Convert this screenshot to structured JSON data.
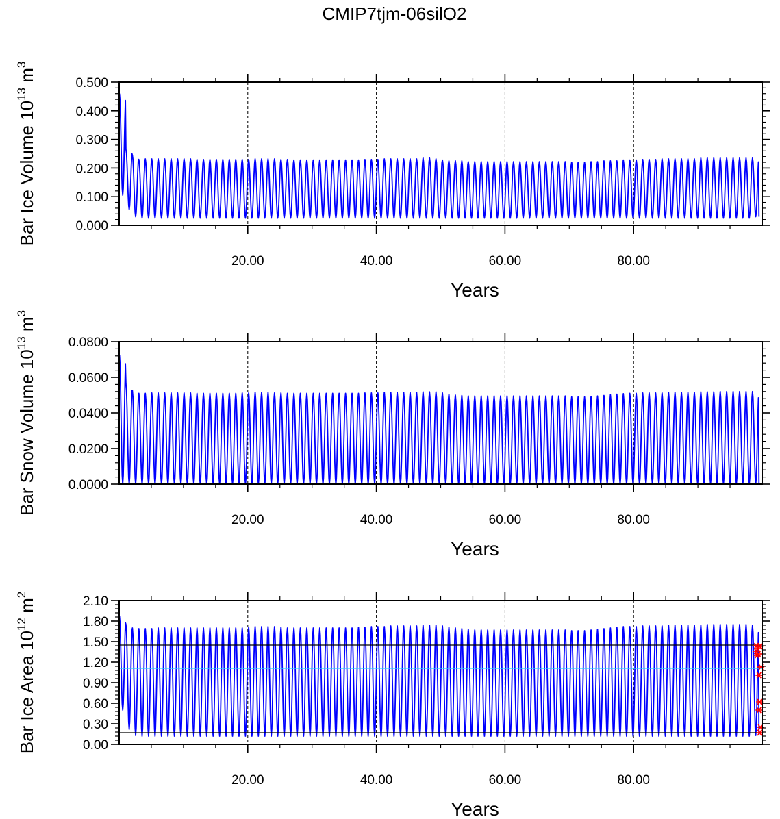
{
  "figure_title": "CMIP7tjm-06silO2",
  "colors": {
    "series": "#0000ff",
    "cyan_line": "#33ccff",
    "ref_line": "#000000",
    "markers": "#ff0000",
    "grid": "#000000"
  },
  "chart_data": [
    {
      "type": "line",
      "title": "",
      "xlabel": "Years",
      "ylabel": {
        "main": "Bar Ice Volume 10",
        "exp": "13",
        "unit": " m",
        "unit_exp": "3"
      },
      "xlim": [
        0,
        100
      ],
      "ylim": [
        0,
        0.5
      ],
      "x_ticks": [
        20,
        40,
        60,
        80
      ],
      "x_tick_labels": [
        "20.00",
        "40.00",
        "60.00",
        "80.00"
      ],
      "y_ticks": [
        0,
        0.1,
        0.2,
        0.3,
        0.4,
        0.5
      ],
      "y_tick_labels": [
        "0.000",
        "0.100",
        "0.200",
        "0.300",
        "0.400",
        "0.500"
      ],
      "grid": "vertical dashed at x ticks",
      "series": [
        {
          "cycles": 99,
          "peaks": [
            0.46,
            0.265,
            0.245,
            0.23,
            0.232,
            0.232,
            0.232,
            0.232,
            0.232,
            0.232,
            0.232,
            0.232,
            0.23,
            0.23,
            0.23,
            0.23,
            0.23,
            0.23,
            0.23,
            0.23,
            0.23,
            0.232,
            0.232,
            0.232,
            0.232,
            0.23,
            0.23,
            0.228,
            0.228,
            0.228,
            0.228,
            0.228,
            0.228,
            0.228,
            0.228,
            0.228,
            0.228,
            0.228,
            0.23,
            0.23,
            0.23,
            0.232,
            0.232,
            0.232,
            0.232,
            0.232,
            0.232,
            0.235,
            0.235,
            0.232,
            0.228,
            0.225,
            0.225,
            0.225,
            0.222,
            0.222,
            0.222,
            0.222,
            0.222,
            0.222,
            0.222,
            0.222,
            0.222,
            0.222,
            0.222,
            0.222,
            0.222,
            0.222,
            0.222,
            0.222,
            0.22,
            0.22,
            0.22,
            0.222,
            0.222,
            0.225,
            0.225,
            0.225,
            0.228,
            0.228,
            0.228,
            0.23,
            0.23,
            0.23,
            0.232,
            0.232,
            0.232,
            0.232,
            0.232,
            0.232,
            0.235,
            0.235,
            0.235,
            0.235,
            0.235,
            0.235,
            0.235,
            0.235,
            0.235
          ],
          "troughs": [
            0.105,
            0.055,
            0.03,
            0.025,
            0.025,
            0.025,
            0.025,
            0.025,
            0.025,
            0.025,
            0.025,
            0.025,
            0.025,
            0.025,
            0.025,
            0.025,
            0.025,
            0.025,
            0.025,
            0.025,
            0.025,
            0.025,
            0.025,
            0.025,
            0.025,
            0.025,
            0.025,
            0.025,
            0.025,
            0.025,
            0.025,
            0.025,
            0.025,
            0.025,
            0.025,
            0.025,
            0.025,
            0.025,
            0.025,
            0.025,
            0.025,
            0.025,
            0.025,
            0.025,
            0.025,
            0.025,
            0.025,
            0.025,
            0.025,
            0.025,
            0.025,
            0.025,
            0.025,
            0.025,
            0.025,
            0.025,
            0.025,
            0.025,
            0.025,
            0.025,
            0.025,
            0.025,
            0.025,
            0.025,
            0.025,
            0.025,
            0.025,
            0.025,
            0.025,
            0.025,
            0.025,
            0.025,
            0.025,
            0.025,
            0.025,
            0.025,
            0.025,
            0.025,
            0.025,
            0.025,
            0.025,
            0.025,
            0.025,
            0.025,
            0.025,
            0.025,
            0.025,
            0.025,
            0.025,
            0.025,
            0.025,
            0.025,
            0.025,
            0.025,
            0.025,
            0.025,
            0.025,
            0.025,
            0.03
          ]
        }
      ],
      "hlines": []
    },
    {
      "type": "line",
      "title": "",
      "xlabel": "Years",
      "ylabel": {
        "main": "Bar Snow Volume 10",
        "exp": "13",
        "unit": " m",
        "unit_exp": "3"
      },
      "xlim": [
        0,
        100
      ],
      "ylim": [
        0,
        0.08
      ],
      "x_ticks": [
        20,
        40,
        60,
        80
      ],
      "x_tick_labels": [
        "20.00",
        "40.00",
        "60.00",
        "80.00"
      ],
      "y_ticks": [
        0,
        0.02,
        0.04,
        0.06,
        0.08
      ],
      "y_tick_labels": [
        "0.0000",
        "0.0200",
        "0.0400",
        "0.0600",
        "0.0800"
      ],
      "grid": "vertical dashed at x ticks",
      "series": [
        {
          "cycles": 99,
          "peaks": [
            0.0725,
            0.0565,
            0.0525,
            0.051,
            0.051,
            0.0512,
            0.0512,
            0.0512,
            0.0512,
            0.0512,
            0.0512,
            0.0512,
            0.051,
            0.051,
            0.051,
            0.051,
            0.051,
            0.051,
            0.051,
            0.0512,
            0.0512,
            0.0515,
            0.0515,
            0.0515,
            0.0512,
            0.0512,
            0.051,
            0.051,
            0.051,
            0.051,
            0.051,
            0.051,
            0.051,
            0.051,
            0.051,
            0.051,
            0.051,
            0.051,
            0.0512,
            0.0512,
            0.0512,
            0.0515,
            0.0515,
            0.0515,
            0.0515,
            0.0515,
            0.0515,
            0.0518,
            0.0518,
            0.0518,
            0.0512,
            0.0505,
            0.05,
            0.0498,
            0.0495,
            0.0495,
            0.0495,
            0.0495,
            0.0495,
            0.0495,
            0.0495,
            0.0495,
            0.0495,
            0.0495,
            0.0495,
            0.0495,
            0.0495,
            0.0495,
            0.0495,
            0.0495,
            0.049,
            0.049,
            0.049,
            0.0492,
            0.0495,
            0.0498,
            0.0502,
            0.0505,
            0.0508,
            0.051,
            0.051,
            0.0512,
            0.0512,
            0.0512,
            0.0512,
            0.0515,
            0.0515,
            0.0515,
            0.0515,
            0.0515,
            0.0518,
            0.0518,
            0.0518,
            0.052,
            0.052,
            0.052,
            0.052,
            0.052,
            0.052
          ],
          "troughs": [
            0.0,
            0.0,
            0.0,
            0.0,
            0.0,
            0.0,
            0.0,
            0.0,
            0.0,
            0.0,
            0.0,
            0.0,
            0.0,
            0.0,
            0.0,
            0.0,
            0.0,
            0.0,
            0.0,
            0.0,
            0.0,
            0.0,
            0.0,
            0.0,
            0.0,
            0.0,
            0.0,
            0.0,
            0.0,
            0.0,
            0.0,
            0.0,
            0.0,
            0.0,
            0.0,
            0.0,
            0.0,
            0.0,
            0.0,
            0.0,
            0.0,
            0.0,
            0.0,
            0.0,
            0.0,
            0.0,
            0.0,
            0.0,
            0.0,
            0.0,
            0.0,
            0.0,
            0.0,
            0.0,
            0.0,
            0.0,
            0.0,
            0.0,
            0.0,
            0.0,
            0.0,
            0.0,
            0.0,
            0.0,
            0.0,
            0.0,
            0.0,
            0.0,
            0.0,
            0.0,
            0.0,
            0.0,
            0.0,
            0.0,
            0.0,
            0.0,
            0.0,
            0.0,
            0.0,
            0.0,
            0.0,
            0.0,
            0.0,
            0.0,
            0.0,
            0.0,
            0.0,
            0.0,
            0.0,
            0.0,
            0.0,
            0.0,
            0.0,
            0.0,
            0.0,
            0.0,
            0.0,
            0.0,
            0.0
          ]
        }
      ],
      "hlines": []
    },
    {
      "type": "line",
      "title": "",
      "xlabel": "Years",
      "ylabel": {
        "main": "Bar Ice Area 10",
        "exp": "12",
        "unit": " m",
        "unit_exp": "2"
      },
      "xlim": [
        0,
        100
      ],
      "ylim": [
        0,
        2.1
      ],
      "x_ticks": [
        20,
        40,
        60,
        80
      ],
      "x_tick_labels": [
        "20.00",
        "40.00",
        "60.00",
        "80.00"
      ],
      "y_ticks": [
        0,
        0.3,
        0.6,
        0.9,
        1.2,
        1.5,
        1.8,
        2.1
      ],
      "y_tick_labels": [
        "0.00",
        "0.30",
        "0.60",
        "0.90",
        "1.20",
        "1.50",
        "1.80",
        "2.10"
      ],
      "grid": "vertical dashed at x ticks",
      "series": [
        {
          "cycles": 99,
          "peaks": [
            1.87,
            1.75,
            1.7,
            1.69,
            1.69,
            1.69,
            1.7,
            1.7,
            1.7,
            1.7,
            1.7,
            1.7,
            1.7,
            1.7,
            1.7,
            1.7,
            1.7,
            1.7,
            1.7,
            1.7,
            1.71,
            1.72,
            1.72,
            1.72,
            1.72,
            1.71,
            1.7,
            1.7,
            1.7,
            1.7,
            1.7,
            1.7,
            1.7,
            1.7,
            1.7,
            1.7,
            1.7,
            1.71,
            1.71,
            1.72,
            1.72,
            1.72,
            1.73,
            1.73,
            1.73,
            1.73,
            1.73,
            1.74,
            1.74,
            1.74,
            1.73,
            1.71,
            1.7,
            1.69,
            1.68,
            1.67,
            1.67,
            1.67,
            1.67,
            1.67,
            1.67,
            1.67,
            1.67,
            1.67,
            1.67,
            1.67,
            1.67,
            1.67,
            1.67,
            1.67,
            1.66,
            1.66,
            1.66,
            1.67,
            1.68,
            1.69,
            1.7,
            1.71,
            1.72,
            1.72,
            1.72,
            1.73,
            1.73,
            1.73,
            1.73,
            1.74,
            1.74,
            1.74,
            1.74,
            1.74,
            1.74,
            1.75,
            1.75,
            1.75,
            1.75,
            1.75,
            1.75,
            1.75,
            1.74
          ],
          "troughs": [
            0.5,
            0.22,
            0.13,
            0.12,
            0.12,
            0.12,
            0.12,
            0.12,
            0.12,
            0.12,
            0.12,
            0.12,
            0.12,
            0.12,
            0.12,
            0.12,
            0.12,
            0.12,
            0.12,
            0.12,
            0.12,
            0.12,
            0.12,
            0.12,
            0.12,
            0.12,
            0.12,
            0.12,
            0.12,
            0.12,
            0.12,
            0.12,
            0.12,
            0.12,
            0.12,
            0.12,
            0.12,
            0.12,
            0.12,
            0.12,
            0.12,
            0.12,
            0.12,
            0.12,
            0.12,
            0.12,
            0.12,
            0.12,
            0.12,
            0.12,
            0.12,
            0.12,
            0.12,
            0.12,
            0.12,
            0.12,
            0.12,
            0.12,
            0.12,
            0.12,
            0.12,
            0.12,
            0.12,
            0.12,
            0.12,
            0.12,
            0.12,
            0.12,
            0.12,
            0.12,
            0.12,
            0.12,
            0.12,
            0.12,
            0.12,
            0.12,
            0.12,
            0.12,
            0.12,
            0.12,
            0.12,
            0.12,
            0.12,
            0.12,
            0.12,
            0.12,
            0.12,
            0.12,
            0.12,
            0.12,
            0.12,
            0.12,
            0.12,
            0.12,
            0.12,
            0.12,
            0.12,
            0.12,
            0.13
          ]
        }
      ],
      "hlines": [
        {
          "y": 1.45,
          "color": "#000000"
        },
        {
          "y": 1.11,
          "color": "#33ccff"
        },
        {
          "y": 0.17,
          "color": "#000000"
        }
      ],
      "markers": {
        "shape": "asterisk",
        "color": "#ff0000",
        "points": [
          {
            "x": 99.1,
            "y": 1.44
          },
          {
            "x": 99.3,
            "y": 1.4
          },
          {
            "x": 99.1,
            "y": 1.36
          },
          {
            "x": 99.4,
            "y": 1.32
          },
          {
            "x": 99.6,
            "y": 1.43
          },
          {
            "x": 99.2,
            "y": 1.3
          },
          {
            "x": 99.8,
            "y": 1.13
          },
          {
            "x": 99.5,
            "y": 1.01
          },
          {
            "x": 99.6,
            "y": 0.62
          },
          {
            "x": 99.5,
            "y": 0.5
          },
          {
            "x": 99.7,
            "y": 0.25
          },
          {
            "x": 99.6,
            "y": 0.17
          }
        ]
      }
    }
  ]
}
